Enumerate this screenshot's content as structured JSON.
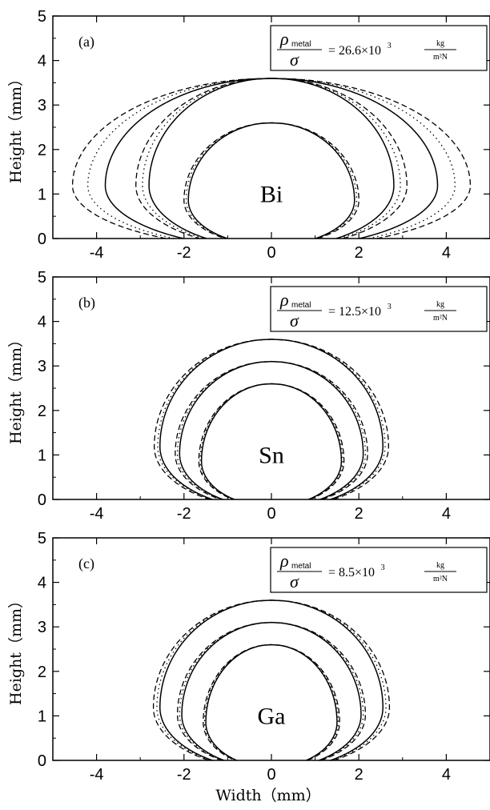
{
  "chart_data": [
    {
      "type": "line",
      "panel_label": "(a)",
      "metal": "Bi",
      "ratio": {
        "numerator": "ρ",
        "subscript": "metal",
        "denominator": "σ",
        "value": "= 26.6×10",
        "exponent": "3",
        "unit_top": "kg",
        "unit_bottom": "m²N"
      },
      "xlim": [
        -5,
        5
      ],
      "ylim": [
        0,
        5
      ],
      "x_ticks": [
        "-4",
        "-2",
        "0",
        "2",
        "4"
      ],
      "y_ticks": [
        "0",
        "1",
        "2",
        "3",
        "4",
        "5"
      ],
      "ylabel": "Height（mm）",
      "xlabel": "",
      "drops": [
        {
          "height_mm": 2.6,
          "solid_half_width_mm": 1.9,
          "dotted_half_width_mm": 1.95,
          "dashed_half_width_mm": 2.0
        },
        {
          "height_mm": 3.6,
          "solid_half_width_mm": 2.8,
          "dotted_half_width_mm": 2.95,
          "dashed_half_width_mm": 3.1
        },
        {
          "height_mm": 3.6,
          "solid_half_width_mm": 3.8,
          "dotted_half_width_mm": 4.2,
          "dashed_half_width_mm": 4.55
        }
      ]
    },
    {
      "type": "line",
      "panel_label": "(b)",
      "metal": "Sn",
      "ratio": {
        "numerator": "ρ",
        "subscript": "metal",
        "denominator": "σ",
        "value": "= 12.5×10",
        "exponent": "3",
        "unit_top": "kg",
        "unit_bottom": "m²N"
      },
      "xlim": [
        -5,
        5
      ],
      "ylim": [
        0,
        5
      ],
      "x_ticks": [
        "-4",
        "-2",
        "0",
        "2",
        "4"
      ],
      "y_ticks": [
        "0",
        "1",
        "2",
        "3",
        "4",
        "5"
      ],
      "ylabel": "Height（mm）",
      "xlabel": "",
      "drops": [
        {
          "height_mm": 2.6,
          "solid_half_width_mm": 1.6,
          "dotted_half_width_mm": 1.63,
          "dashed_half_width_mm": 1.66
        },
        {
          "height_mm": 3.1,
          "solid_half_width_mm": 2.1,
          "dotted_half_width_mm": 2.15,
          "dashed_half_width_mm": 2.2
        },
        {
          "height_mm": 3.6,
          "solid_half_width_mm": 2.55,
          "dotted_half_width_mm": 2.6,
          "dashed_half_width_mm": 2.68
        }
      ]
    },
    {
      "type": "line",
      "panel_label": "(c)",
      "metal": "Ga",
      "ratio": {
        "numerator": "ρ",
        "subscript": "metal",
        "denominator": "σ",
        "value": "= 8.5×10",
        "exponent": "3",
        "unit_top": "kg",
        "unit_bottom": "m²N"
      },
      "xlim": [
        -5,
        5
      ],
      "ylim": [
        0,
        5
      ],
      "x_ticks": [
        "-4",
        "-2",
        "0",
        "2",
        "4"
      ],
      "y_ticks": [
        "0",
        "1",
        "2",
        "3",
        "4",
        "5"
      ],
      "ylabel": "Height（mm）",
      "xlabel": "Width（mm）",
      "drops": [
        {
          "height_mm": 2.6,
          "solid_half_width_mm": 1.5,
          "dotted_half_width_mm": 1.53,
          "dashed_half_width_mm": 1.56
        },
        {
          "height_mm": 3.1,
          "solid_half_width_mm": 2.05,
          "dotted_half_width_mm": 2.1,
          "dashed_half_width_mm": 2.15
        },
        {
          "height_mm": 3.6,
          "solid_half_width_mm": 2.55,
          "dotted_half_width_mm": 2.62,
          "dashed_half_width_mm": 2.7
        }
      ]
    }
  ]
}
